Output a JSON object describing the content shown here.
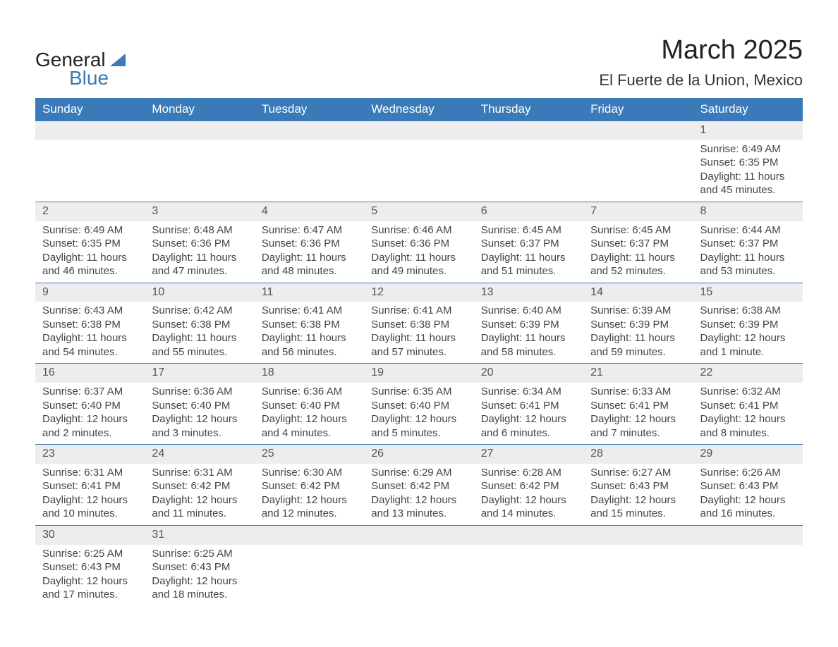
{
  "logo": {
    "line1": "General",
    "line2": "Blue"
  },
  "title": "March 2025",
  "location": "El Fuerte de la Union, Mexico",
  "colors": {
    "header_bg": "#3a7ab8",
    "header_fg": "#ffffff",
    "daynum_bg": "#ededed",
    "border": "#3a7ab8",
    "text": "#333333",
    "page_bg": "#ffffff"
  },
  "typography": {
    "title_fontsize": 38,
    "location_fontsize": 22,
    "header_fontsize": 17,
    "body_fontsize": 15,
    "font_family": "Arial"
  },
  "day_headers": [
    "Sunday",
    "Monday",
    "Tuesday",
    "Wednesday",
    "Thursday",
    "Friday",
    "Saturday"
  ],
  "weeks": [
    [
      {
        "empty": true
      },
      {
        "empty": true
      },
      {
        "empty": true
      },
      {
        "empty": true
      },
      {
        "empty": true
      },
      {
        "empty": true
      },
      {
        "num": "1",
        "sunrise": "Sunrise: 6:49 AM",
        "sunset": "Sunset: 6:35 PM",
        "daylight": "Daylight: 11 hours and 45 minutes."
      }
    ],
    [
      {
        "num": "2",
        "sunrise": "Sunrise: 6:49 AM",
        "sunset": "Sunset: 6:35 PM",
        "daylight": "Daylight: 11 hours and 46 minutes."
      },
      {
        "num": "3",
        "sunrise": "Sunrise: 6:48 AM",
        "sunset": "Sunset: 6:36 PM",
        "daylight": "Daylight: 11 hours and 47 minutes."
      },
      {
        "num": "4",
        "sunrise": "Sunrise: 6:47 AM",
        "sunset": "Sunset: 6:36 PM",
        "daylight": "Daylight: 11 hours and 48 minutes."
      },
      {
        "num": "5",
        "sunrise": "Sunrise: 6:46 AM",
        "sunset": "Sunset: 6:36 PM",
        "daylight": "Daylight: 11 hours and 49 minutes."
      },
      {
        "num": "6",
        "sunrise": "Sunrise: 6:45 AM",
        "sunset": "Sunset: 6:37 PM",
        "daylight": "Daylight: 11 hours and 51 minutes."
      },
      {
        "num": "7",
        "sunrise": "Sunrise: 6:45 AM",
        "sunset": "Sunset: 6:37 PM",
        "daylight": "Daylight: 11 hours and 52 minutes."
      },
      {
        "num": "8",
        "sunrise": "Sunrise: 6:44 AM",
        "sunset": "Sunset: 6:37 PM",
        "daylight": "Daylight: 11 hours and 53 minutes."
      }
    ],
    [
      {
        "num": "9",
        "sunrise": "Sunrise: 6:43 AM",
        "sunset": "Sunset: 6:38 PM",
        "daylight": "Daylight: 11 hours and 54 minutes."
      },
      {
        "num": "10",
        "sunrise": "Sunrise: 6:42 AM",
        "sunset": "Sunset: 6:38 PM",
        "daylight": "Daylight: 11 hours and 55 minutes."
      },
      {
        "num": "11",
        "sunrise": "Sunrise: 6:41 AM",
        "sunset": "Sunset: 6:38 PM",
        "daylight": "Daylight: 11 hours and 56 minutes."
      },
      {
        "num": "12",
        "sunrise": "Sunrise: 6:41 AM",
        "sunset": "Sunset: 6:38 PM",
        "daylight": "Daylight: 11 hours and 57 minutes."
      },
      {
        "num": "13",
        "sunrise": "Sunrise: 6:40 AM",
        "sunset": "Sunset: 6:39 PM",
        "daylight": "Daylight: 11 hours and 58 minutes."
      },
      {
        "num": "14",
        "sunrise": "Sunrise: 6:39 AM",
        "sunset": "Sunset: 6:39 PM",
        "daylight": "Daylight: 11 hours and 59 minutes."
      },
      {
        "num": "15",
        "sunrise": "Sunrise: 6:38 AM",
        "sunset": "Sunset: 6:39 PM",
        "daylight": "Daylight: 12 hours and 1 minute."
      }
    ],
    [
      {
        "num": "16",
        "sunrise": "Sunrise: 6:37 AM",
        "sunset": "Sunset: 6:40 PM",
        "daylight": "Daylight: 12 hours and 2 minutes."
      },
      {
        "num": "17",
        "sunrise": "Sunrise: 6:36 AM",
        "sunset": "Sunset: 6:40 PM",
        "daylight": "Daylight: 12 hours and 3 minutes."
      },
      {
        "num": "18",
        "sunrise": "Sunrise: 6:36 AM",
        "sunset": "Sunset: 6:40 PM",
        "daylight": "Daylight: 12 hours and 4 minutes."
      },
      {
        "num": "19",
        "sunrise": "Sunrise: 6:35 AM",
        "sunset": "Sunset: 6:40 PM",
        "daylight": "Daylight: 12 hours and 5 minutes."
      },
      {
        "num": "20",
        "sunrise": "Sunrise: 6:34 AM",
        "sunset": "Sunset: 6:41 PM",
        "daylight": "Daylight: 12 hours and 6 minutes."
      },
      {
        "num": "21",
        "sunrise": "Sunrise: 6:33 AM",
        "sunset": "Sunset: 6:41 PM",
        "daylight": "Daylight: 12 hours and 7 minutes."
      },
      {
        "num": "22",
        "sunrise": "Sunrise: 6:32 AM",
        "sunset": "Sunset: 6:41 PM",
        "daylight": "Daylight: 12 hours and 8 minutes."
      }
    ],
    [
      {
        "num": "23",
        "sunrise": "Sunrise: 6:31 AM",
        "sunset": "Sunset: 6:41 PM",
        "daylight": "Daylight: 12 hours and 10 minutes."
      },
      {
        "num": "24",
        "sunrise": "Sunrise: 6:31 AM",
        "sunset": "Sunset: 6:42 PM",
        "daylight": "Daylight: 12 hours and 11 minutes."
      },
      {
        "num": "25",
        "sunrise": "Sunrise: 6:30 AM",
        "sunset": "Sunset: 6:42 PM",
        "daylight": "Daylight: 12 hours and 12 minutes."
      },
      {
        "num": "26",
        "sunrise": "Sunrise: 6:29 AM",
        "sunset": "Sunset: 6:42 PM",
        "daylight": "Daylight: 12 hours and 13 minutes."
      },
      {
        "num": "27",
        "sunrise": "Sunrise: 6:28 AM",
        "sunset": "Sunset: 6:42 PM",
        "daylight": "Daylight: 12 hours and 14 minutes."
      },
      {
        "num": "28",
        "sunrise": "Sunrise: 6:27 AM",
        "sunset": "Sunset: 6:43 PM",
        "daylight": "Daylight: 12 hours and 15 minutes."
      },
      {
        "num": "29",
        "sunrise": "Sunrise: 6:26 AM",
        "sunset": "Sunset: 6:43 PM",
        "daylight": "Daylight: 12 hours and 16 minutes."
      }
    ],
    [
      {
        "num": "30",
        "sunrise": "Sunrise: 6:25 AM",
        "sunset": "Sunset: 6:43 PM",
        "daylight": "Daylight: 12 hours and 17 minutes."
      },
      {
        "num": "31",
        "sunrise": "Sunrise: 6:25 AM",
        "sunset": "Sunset: 6:43 PM",
        "daylight": "Daylight: 12 hours and 18 minutes."
      },
      {
        "empty": true
      },
      {
        "empty": true
      },
      {
        "empty": true
      },
      {
        "empty": true
      },
      {
        "empty": true
      }
    ]
  ]
}
